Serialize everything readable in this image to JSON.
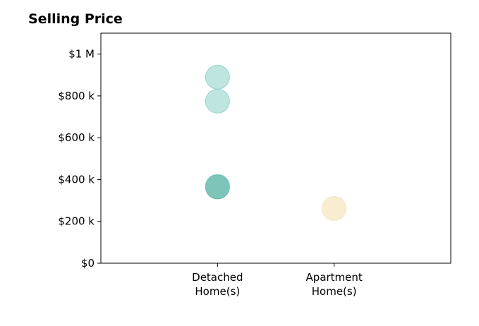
{
  "chart_data": {
    "type": "scatter",
    "title": "Selling Price",
    "xlabel": "",
    "ylabel": "",
    "categories": [
      {
        "lines": [
          "Detached",
          "Home(s)"
        ]
      },
      {
        "lines": [
          "Apartment",
          "Home(s)"
        ]
      }
    ],
    "y_ticks": [
      {
        "value": 0,
        "label": "$0"
      },
      {
        "value": 200000,
        "label": "$200 k"
      },
      {
        "value": 400000,
        "label": "$400 k"
      },
      {
        "value": 600000,
        "label": "$600 k"
      },
      {
        "value": 800000,
        "label": "$800 k"
      },
      {
        "value": 1000000,
        "label": "$1 M"
      }
    ],
    "ylim": [
      0,
      1100000
    ],
    "xlim": [
      -1,
      2
    ],
    "grid": false,
    "points": [
      {
        "category": 0,
        "y": 890000,
        "color": "#7ecbc0",
        "opacity": 0.5
      },
      {
        "category": 0,
        "y": 775000,
        "color": "#7ecbc0",
        "opacity": 0.5
      },
      {
        "category": 0,
        "y": 365000,
        "color": "#5db2a2",
        "opacity": 0.8
      },
      {
        "category": 0,
        "y": 368000,
        "color": "#7ecbc0",
        "opacity": 0.4
      },
      {
        "category": 1,
        "y": 262000,
        "color": "#f3dfb3",
        "opacity": 0.6
      }
    ]
  }
}
